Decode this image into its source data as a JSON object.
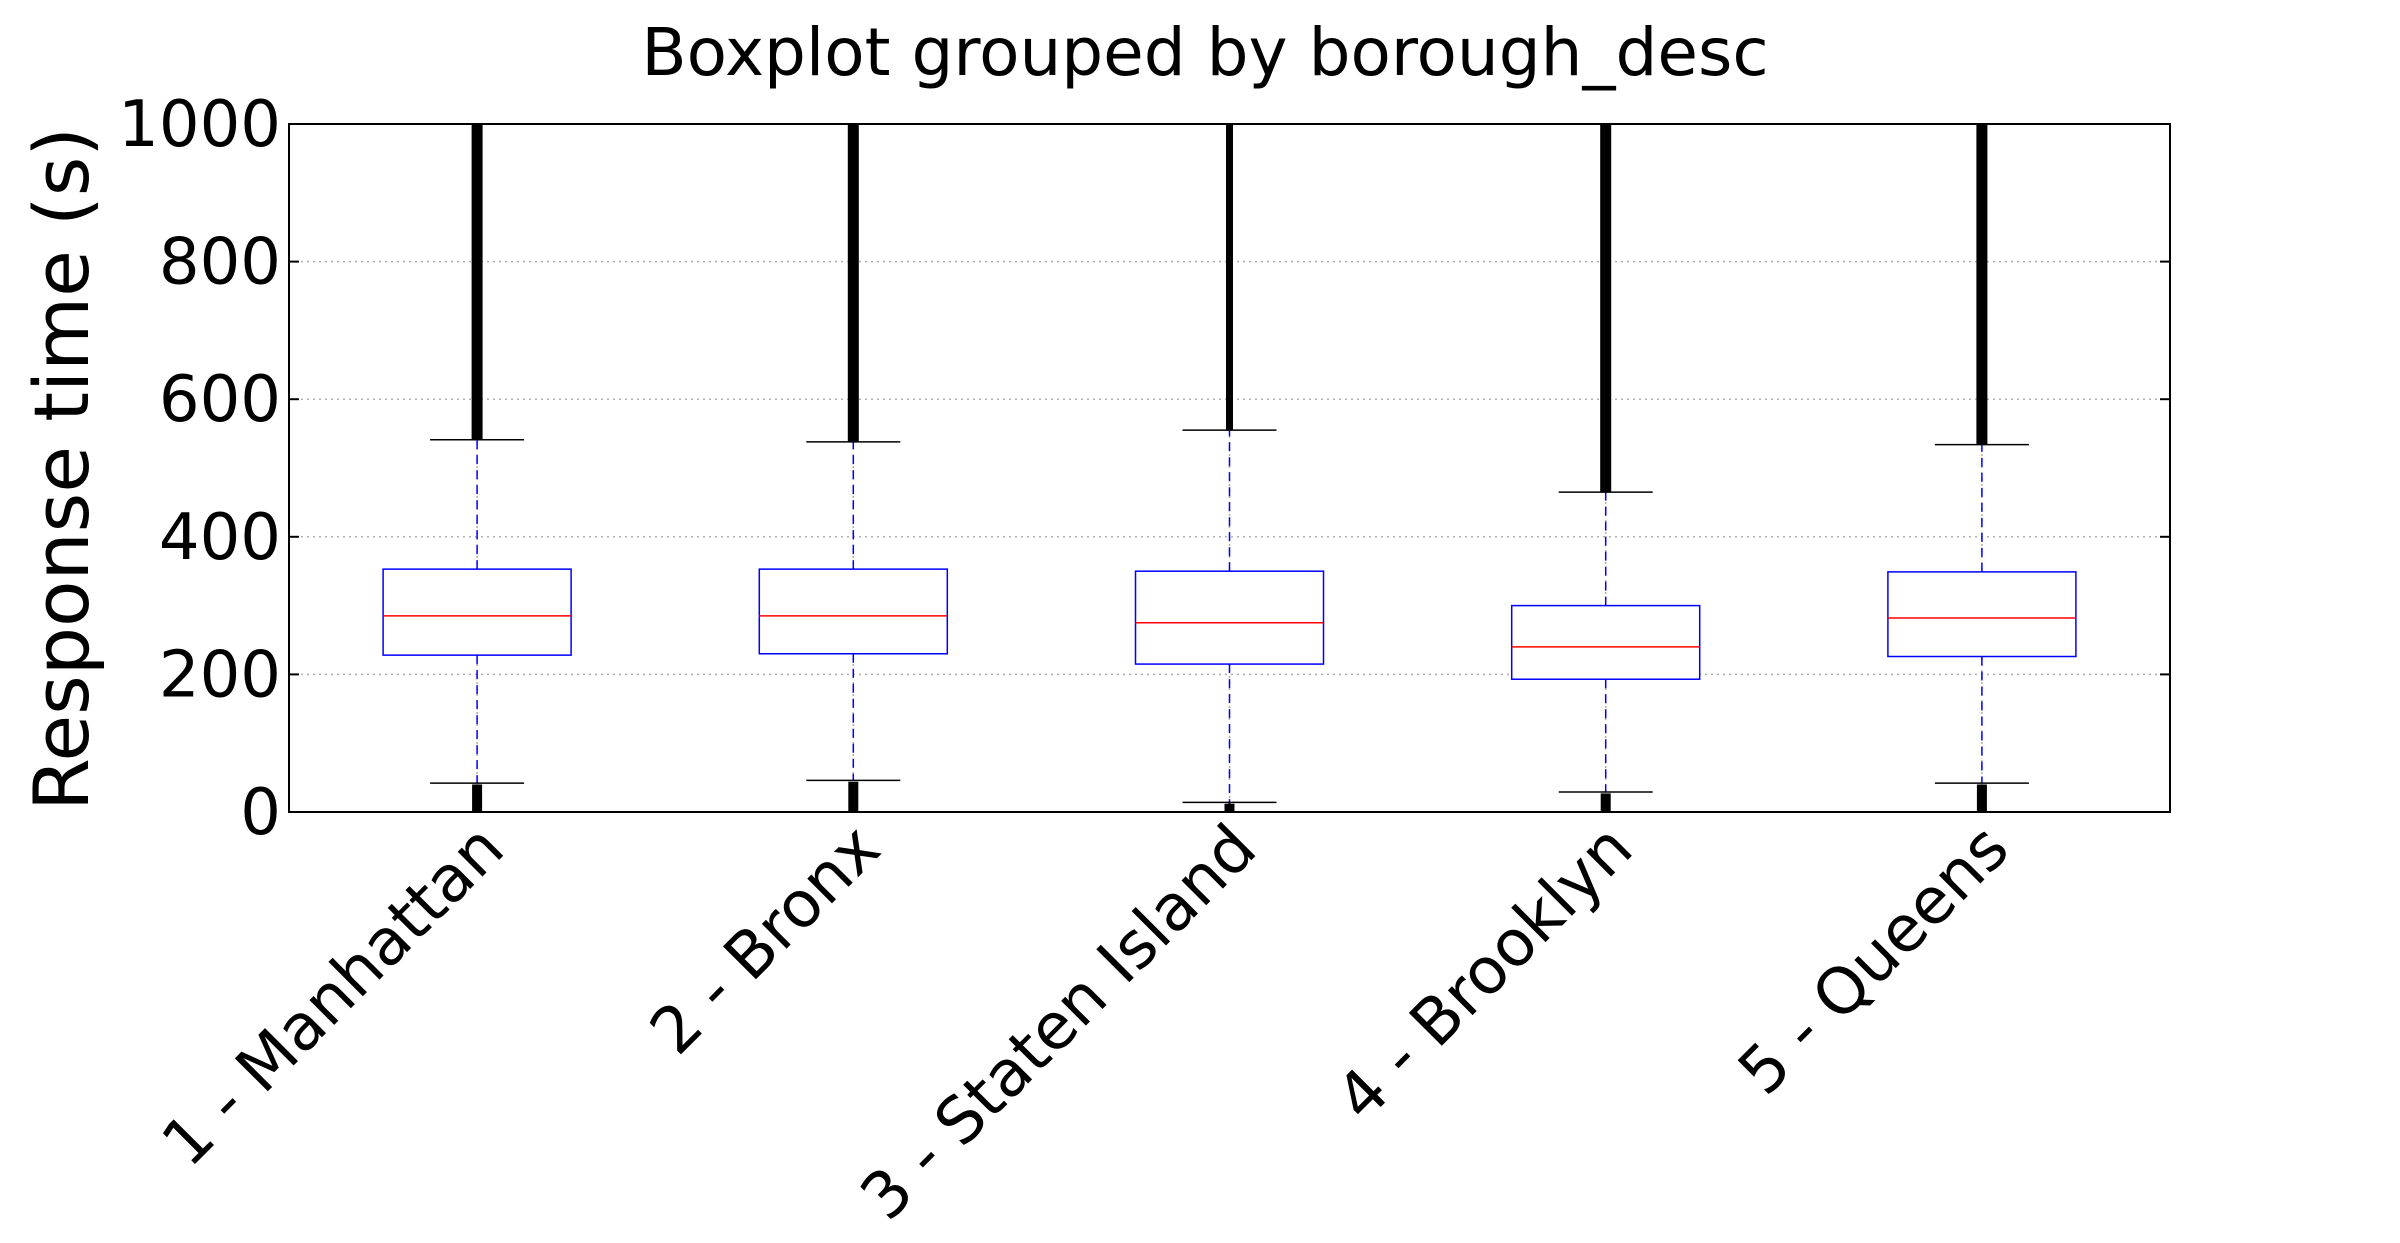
{
  "chart_data": {
    "type": "boxplot",
    "title": "Boxplot grouped by borough_desc",
    "xlabel": "",
    "ylabel": "Response time (s)",
    "ylim": [
      0,
      1000
    ],
    "yticks": [
      0,
      200,
      400,
      600,
      800,
      1000
    ],
    "grid": true,
    "categories": [
      "1 - Manhattan",
      "2 - Bronx",
      "3 - Staten Island",
      "4 - Brooklyn",
      "5 - Queens"
    ],
    "boxes": [
      {
        "label": "1 - Manhattan",
        "whisker_low": 42,
        "q1": 228,
        "median": 285,
        "q3": 353,
        "whisker_high": 541,
        "fliers_low": [
          0,
          40
        ],
        "fliers_high": [
          541,
          1000
        ],
        "flier_style": "dense"
      },
      {
        "label": "2 - Bronx",
        "whisker_low": 46,
        "q1": 230,
        "median": 285,
        "q3": 353,
        "whisker_high": 538,
        "fliers_low": [
          0,
          44
        ],
        "fliers_high": [
          538,
          1000
        ],
        "flier_style": "dense"
      },
      {
        "label": "3 - Staten Island",
        "whisker_low": 14,
        "q1": 215,
        "median": 275,
        "q3": 350,
        "whisker_high": 555,
        "fliers_low": [
          0,
          12
        ],
        "fliers_high": [
          555,
          1000
        ],
        "flier_style": "sparse"
      },
      {
        "label": "4 - Brooklyn",
        "whisker_low": 29,
        "q1": 193,
        "median": 240,
        "q3": 300,
        "whisker_high": 465,
        "fliers_low": [
          0,
          27
        ],
        "fliers_high": [
          465,
          1000
        ],
        "flier_style": "dense"
      },
      {
        "label": "5 - Queens",
        "whisker_low": 42,
        "q1": 226,
        "median": 282,
        "q3": 349,
        "whisker_high": 534,
        "fliers_low": [
          0,
          40
        ],
        "fliers_high": [
          534,
          1000
        ],
        "flier_style": "dense"
      }
    ],
    "colors": {
      "box": "#0000ff",
      "median": "#ff0000",
      "whisker": "#0000ff",
      "cap": "#000000",
      "flier": "#000000",
      "grid": "#b0b0b0"
    }
  }
}
